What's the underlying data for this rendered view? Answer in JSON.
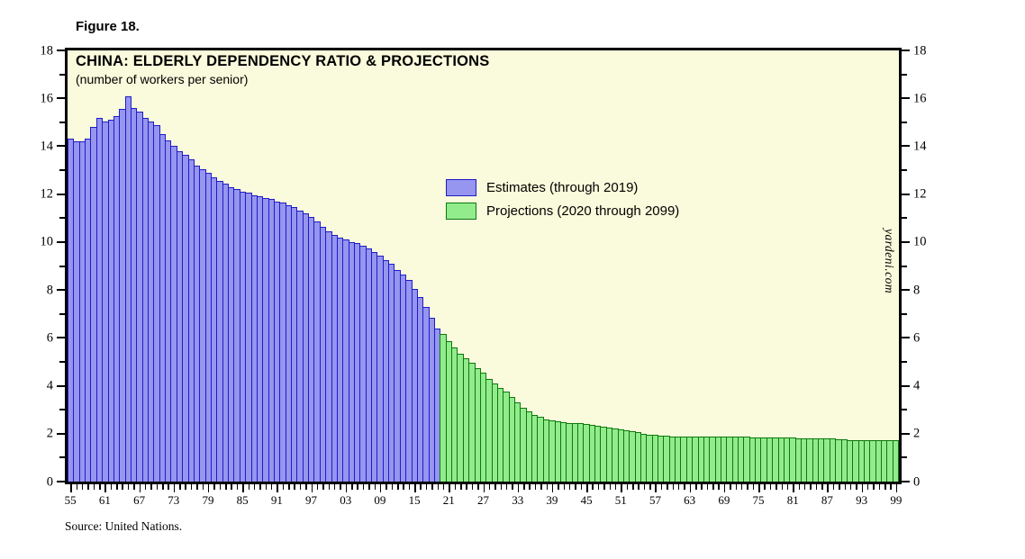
{
  "figure_label": "Figure 18.",
  "source_note": "Source: United Nations.",
  "watermark": "yardeni.com",
  "colors": {
    "plot_background": "#fafadc",
    "frame": "#000000",
    "estimates_fill": "#9695ef",
    "estimates_border": "#1d1dc8",
    "projections_fill": "#92ec8c",
    "projections_border": "#0c790c"
  },
  "chart_data": {
    "type": "bar",
    "title": "CHINA: ELDERLY DEPENDENCY RATIO & PROJECTIONS",
    "subtitle": "(number of workers per senior)",
    "xlabel": "",
    "ylabel": "",
    "ylim": [
      0,
      18
    ],
    "y_major_tick_step": 2,
    "y_minor_tick_step": 1,
    "y_tick_labels": [
      "0",
      "2",
      "4",
      "6",
      "8",
      "10",
      "12",
      "14",
      "16",
      "18"
    ],
    "x_start_year": 1955,
    "x_end_year": 2099,
    "x_label_step": 6,
    "x_tick_labels": [
      "55",
      "61",
      "67",
      "73",
      "79",
      "85",
      "91",
      "97",
      "03",
      "09",
      "15",
      "21",
      "27",
      "33",
      "39",
      "45",
      "51",
      "57",
      "63",
      "69",
      "75",
      "81",
      "87",
      "93",
      "99"
    ],
    "grid": false,
    "legend_position": "upper-middle",
    "series": [
      {
        "name": "Estimates (through 2019)",
        "start_year": 1955,
        "end_year": 2019,
        "color_key": "estimates",
        "values": [
          14.3,
          14.2,
          14.2,
          14.3,
          14.8,
          15.2,
          15.05,
          15.1,
          15.25,
          15.55,
          16.1,
          15.6,
          15.45,
          15.2,
          15.05,
          14.9,
          14.5,
          14.25,
          14.0,
          13.8,
          13.65,
          13.45,
          13.2,
          13.05,
          12.9,
          12.7,
          12.55,
          12.45,
          12.3,
          12.2,
          12.1,
          12.05,
          11.95,
          11.9,
          11.85,
          11.8,
          11.7,
          11.65,
          11.55,
          11.45,
          11.3,
          11.2,
          11.05,
          10.85,
          10.65,
          10.45,
          10.3,
          10.2,
          10.1,
          10.0,
          9.95,
          9.85,
          9.75,
          9.6,
          9.45,
          9.25,
          9.1,
          8.85,
          8.65,
          8.4,
          8.05,
          7.7,
          7.3,
          6.85,
          6.4
        ]
      },
      {
        "name": "Projections (2020 through 2099)",
        "start_year": 2020,
        "end_year": 2099,
        "color_key": "projections",
        "values": [
          6.15,
          5.85,
          5.6,
          5.35,
          5.15,
          4.95,
          4.75,
          4.55,
          4.3,
          4.1,
          3.9,
          3.75,
          3.55,
          3.3,
          3.1,
          2.95,
          2.8,
          2.7,
          2.6,
          2.55,
          2.5,
          2.47,
          2.45,
          2.44,
          2.43,
          2.42,
          2.38,
          2.34,
          2.3,
          2.26,
          2.22,
          2.18,
          2.14,
          2.1,
          2.05,
          2.0,
          1.97,
          1.94,
          1.92,
          1.9,
          1.89,
          1.89,
          1.88,
          1.88,
          1.88,
          1.88,
          1.88,
          1.88,
          1.88,
          1.88,
          1.88,
          1.88,
          1.87,
          1.87,
          1.86,
          1.86,
          1.85,
          1.85,
          1.84,
          1.84,
          1.83,
          1.83,
          1.82,
          1.82,
          1.81,
          1.81,
          1.8,
          1.8,
          1.79,
          1.77,
          1.75,
          1.74,
          1.73,
          1.73,
          1.72,
          1.72,
          1.72,
          1.72,
          1.72,
          1.73
        ]
      }
    ]
  }
}
